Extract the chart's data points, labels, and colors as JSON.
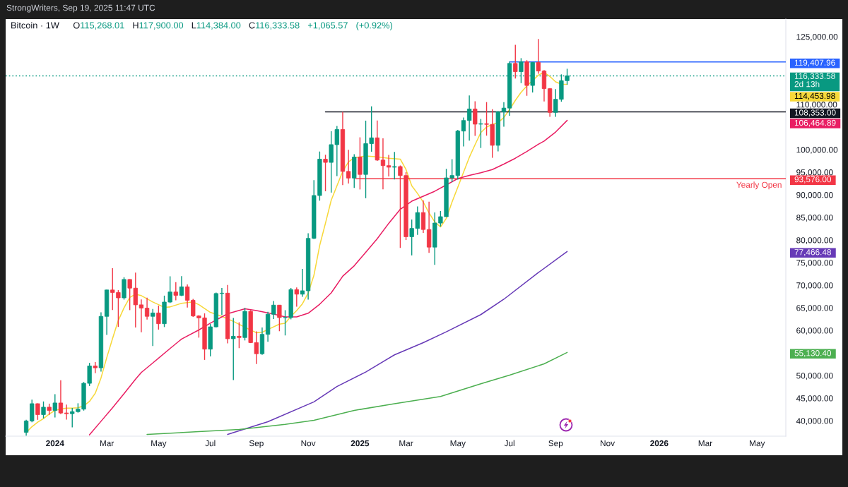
{
  "chart_data": {
    "type": "candlestick",
    "title": "Bitcoin · 1W",
    "subtitle": "O115,268.01 H117,900.00 L114,384.00 C116,333.58 +1,065.57 (+0.92%)",
    "annotations": [
      "StrongWriters, Sep 19, 2025 11:47 UTC",
      "114,453.98",
      "106,464.89",
      "77,466.48",
      "55,130.40"
    ],
    "x": [
      "2023-11-27",
      "2023-12-04",
      "2023-12-11",
      "2023-12-18",
      "2023-12-25",
      "2024-01-01",
      "2024-01-08",
      "2024-01-15",
      "2024-01-22",
      "2024-01-29",
      "2024-02-05",
      "2024-02-12",
      "2024-02-19",
      "2024-02-26",
      "2024-03-04",
      "2024-03-11",
      "2024-03-18",
      "2024-03-25",
      "2024-04-01",
      "2024-04-08",
      "2024-04-15",
      "2024-04-22",
      "2024-04-29",
      "2024-05-06",
      "2024-05-13",
      "2024-05-20",
      "2024-05-27",
      "2024-06-03",
      "2024-06-10",
      "2024-06-17",
      "2024-06-24",
      "2024-07-01",
      "2024-07-08",
      "2024-07-15",
      "2024-07-22",
      "2024-07-29",
      "2024-08-05",
      "2024-08-12",
      "2024-08-19",
      "2024-08-26",
      "2024-09-02",
      "2024-09-09",
      "2024-09-16",
      "2024-09-23",
      "2024-09-30",
      "2024-10-07",
      "2024-10-14",
      "2024-10-21",
      "2024-10-28",
      "2024-11-04",
      "2024-11-11",
      "2024-11-18",
      "2024-11-25",
      "2024-12-02",
      "2024-12-09",
      "2024-12-16",
      "2024-12-23",
      "2024-12-30",
      "2025-01-06",
      "2025-01-13",
      "2025-01-20",
      "2025-01-27",
      "2025-02-03",
      "2025-02-10",
      "2025-02-17",
      "2025-02-24",
      "2025-03-03",
      "2025-03-10",
      "2025-03-17",
      "2025-03-24",
      "2025-03-31",
      "2025-04-07",
      "2025-04-14",
      "2025-04-21",
      "2025-04-28",
      "2025-05-05",
      "2025-05-12",
      "2025-05-19",
      "2025-05-26",
      "2025-06-02",
      "2025-06-09",
      "2025-06-16",
      "2025-06-23",
      "2025-06-30",
      "2025-07-07",
      "2025-07-14",
      "2025-07-21",
      "2025-07-28",
      "2025-08-04",
      "2025-08-11",
      "2025-08-18",
      "2025-08-25",
      "2025-09-01",
      "2025-09-08",
      "2025-09-15"
    ],
    "ohlc": [
      [
        37450,
        40250,
        36700,
        39972
      ],
      [
        39972,
        44700,
        39700,
        43790
      ],
      [
        43790,
        43850,
        40222,
        41375
      ],
      [
        41375,
        44283,
        40555,
        43016
      ],
      [
        43016,
        43800,
        41300,
        42283
      ],
      [
        42283,
        45879,
        40750,
        43950
      ],
      [
        43950,
        48969,
        41500,
        41732
      ],
      [
        41732,
        43578,
        40280,
        41580
      ],
      [
        41580,
        42842,
        38555,
        42031
      ],
      [
        42031,
        43882,
        41800,
        42582
      ],
      [
        42582,
        48592,
        42258,
        48299
      ],
      [
        48299,
        52816,
        47710,
        52137
      ],
      [
        52137,
        52985,
        50521,
        51733
      ],
      [
        51733,
        64000,
        50901,
        63113
      ],
      [
        63113,
        69000,
        59005,
        68955
      ],
      [
        68955,
        73777,
        64533,
        68393
      ],
      [
        68393,
        68920,
        60775,
        67211
      ],
      [
        67211,
        71769,
        66817,
        71280
      ],
      [
        71280,
        71342,
        64493,
        69361
      ],
      [
        69361,
        72797,
        60660,
        65661
      ],
      [
        65661,
        66867,
        59600,
        64941
      ],
      [
        64941,
        67233,
        62391,
        63118
      ],
      [
        63118,
        64734,
        56552,
        63866
      ],
      [
        63866,
        65494,
        60187,
        61484
      ],
      [
        61484,
        67700,
        60749,
        66274
      ],
      [
        66274,
        71979,
        66060,
        68507
      ],
      [
        68507,
        70687,
        66670,
        67766
      ],
      [
        67766,
        71997,
        67612,
        69648
      ],
      [
        69648,
        70195,
        65078,
        66676
      ],
      [
        66676,
        66986,
        63000,
        63210
      ],
      [
        63210,
        63369,
        58402,
        62772
      ],
      [
        62772,
        63777,
        53485,
        55857
      ],
      [
        55857,
        61420,
        54260,
        60797
      ],
      [
        60797,
        68366,
        60632,
        68165
      ],
      [
        68165,
        69400,
        63441,
        68249
      ],
      [
        68249,
        70079,
        57122,
        58161
      ],
      [
        58161,
        62745,
        49000,
        58712
      ],
      [
        58712,
        61800,
        56078,
        58427
      ],
      [
        58427,
        65000,
        57787,
        64220
      ],
      [
        64220,
        64481,
        57200,
        57301
      ],
      [
        57301,
        59809,
        52550,
        54841
      ],
      [
        54841,
        60670,
        54583,
        59132
      ],
      [
        59132,
        64133,
        57493,
        63578
      ],
      [
        63578,
        66500,
        62538,
        65602
      ],
      [
        65602,
        65618,
        59828,
        62845
      ],
      [
        62845,
        64478,
        58895,
        62851
      ],
      [
        62851,
        69400,
        62457,
        69031
      ],
      [
        69031,
        69519,
        65260,
        68021
      ],
      [
        68021,
        73620,
        67456,
        68775
      ],
      [
        68775,
        81500,
        66835,
        80370
      ],
      [
        80370,
        93265,
        80216,
        89855
      ],
      [
        89855,
        99588,
        88711,
        97900
      ],
      [
        97900,
        98871,
        90791,
        97185
      ],
      [
        97185,
        104088,
        90500,
        101109
      ],
      [
        101109,
        105250,
        94150,
        104463
      ],
      [
        104463,
        108353,
        92175,
        95186
      ],
      [
        95186,
        99963,
        92500,
        93716
      ],
      [
        93716,
        99000,
        91530,
        98364
      ],
      [
        98364,
        102724,
        91203,
        94516
      ],
      [
        94516,
        106422,
        89256,
        101335
      ],
      [
        101335,
        109588,
        99550,
        102620
      ],
      [
        102620,
        106457,
        97500,
        97700
      ],
      [
        97700,
        102500,
        91231,
        96462
      ],
      [
        96462,
        98826,
        94091,
        96118
      ],
      [
        96118,
        99500,
        93400,
        96258
      ],
      [
        96258,
        96500,
        78258,
        94270
      ],
      [
        94270,
        95000,
        80000,
        80734
      ],
      [
        80734,
        84539,
        76606,
        82575
      ],
      [
        82575,
        87453,
        81134,
        86082
      ],
      [
        86082,
        88765,
        81565,
        82334
      ],
      [
        82334,
        88500,
        77150,
        78430
      ],
      [
        78430,
        86100,
        74508,
        83760
      ],
      [
        83760,
        86429,
        83000,
        85170
      ],
      [
        85170,
        95758,
        85144,
        93750
      ],
      [
        93750,
        97895,
        92800,
        94280
      ],
      [
        94280,
        104361,
        93377,
        104118
      ],
      [
        104118,
        107108,
        100718,
        106454
      ],
      [
        106454,
        111980,
        102000,
        109004
      ],
      [
        109004,
        110718,
        103068,
        105642
      ],
      [
        105642,
        106794,
        100372,
        105734
      ],
      [
        105734,
        110530,
        103100,
        105595
      ],
      [
        105595,
        108952,
        98200,
        100963
      ],
      [
        100963,
        108528,
        99604,
        108385
      ],
      [
        108385,
        110529,
        105100,
        109203
      ],
      [
        109203,
        119488,
        107500,
        119086
      ],
      [
        119086,
        123218,
        115736,
        117265
      ],
      [
        117265,
        120247,
        114723,
        119448
      ],
      [
        119448,
        119800,
        111920,
        114208
      ],
      [
        114208,
        119400,
        112650,
        119294
      ],
      [
        119294,
        124474,
        116803,
        117405
      ],
      [
        117405,
        117630,
        110680,
        113497
      ],
      [
        113497,
        113650,
        107255,
        108246
      ],
      [
        108246,
        113384,
        107270,
        111144
      ],
      [
        111144,
        116665,
        110620,
        115268.01
      ],
      [
        115268.01,
        117900,
        114384,
        116333.58
      ]
    ],
    "colors": [
      "#089981",
      "#089981",
      "#f23645",
      "#089981",
      "#f23645",
      "#089981",
      "#f23645",
      "#f23645",
      "#089981",
      "#089981",
      "#089981",
      "#089981",
      "#f23645",
      "#089981",
      "#089981",
      "#f23645",
      "#f23645",
      "#089981",
      "#f23645",
      "#f23645",
      "#f23645",
      "#f23645",
      "#089981",
      "#f23645",
      "#089981",
      "#089981",
      "#f23645",
      "#089981",
      "#f23645",
      "#f23645",
      "#f23645",
      "#f23645",
      "#089981",
      "#089981",
      "#089981",
      "#f23645",
      "#089981",
      "#f23645",
      "#089981",
      "#f23645",
      "#f23645",
      "#089981",
      "#089981",
      "#089981",
      "#f23645",
      "#089981",
      "#089981",
      "#f23645",
      "#089981",
      "#089981",
      "#089981",
      "#089981",
      "#f23645",
      "#089981",
      "#089981",
      "#f23645",
      "#f23645",
      "#089981",
      "#f23645",
      "#089981",
      "#089981",
      "#f23645",
      "#f23645",
      "#f23645",
      "#089981",
      "#f23645",
      "#f23645",
      "#089981",
      "#089981",
      "#f23645",
      "#f23645",
      "#089981",
      "#089981",
      "#089981",
      "#089981",
      "#089981",
      "#089981",
      "#089981",
      "#f23645",
      "#089981",
      "#f23645",
      "#f23645",
      "#089981",
      "#089981",
      "#089981",
      "#f23645",
      "#089981",
      "#f23645",
      "#089981",
      "#f23645",
      "#f23645",
      "#f23645",
      "#089981",
      "#089981",
      "#089981"
    ],
    "series": [
      {
        "type": "line",
        "color": "#f7d83a",
        "x": [
          "2023-11-27",
          "2023-12-04",
          "2023-12-11",
          "2023-12-18",
          "2023-12-25",
          "2024-01-01",
          "2024-01-08",
          "2024-01-15",
          "2024-01-22",
          "2024-01-29",
          "2024-02-05",
          "2024-02-12",
          "2024-02-19",
          "2024-02-26",
          "2024-03-04",
          "2024-03-11",
          "2024-03-18",
          "2024-03-25",
          "2024-04-01",
          "2024-04-08",
          "2024-04-15",
          "2024-04-22",
          "2024-04-29",
          "2024-05-06",
          "2024-05-13",
          "2024-05-20",
          "2024-06-03",
          "2024-06-17",
          "2024-06-24",
          "2024-07-08",
          "2024-07-22",
          "2024-08-05",
          "2024-08-19",
          "2024-09-02",
          "2024-09-09",
          "2024-09-16",
          "2024-09-30",
          "2024-10-07",
          "2024-10-14",
          "2024-10-21",
          "2024-10-28",
          "2024-11-04",
          "2024-11-11",
          "2024-11-18",
          "2024-11-25",
          "2024-12-02",
          "2024-12-09",
          "2024-12-16",
          "2024-12-23",
          "2024-12-30",
          "2025-01-13",
          "2025-01-27",
          "2025-02-10",
          "2025-02-24",
          "2025-03-03",
          "2025-03-10",
          "2025-03-17",
          "2025-03-24",
          "2025-03-31",
          "2025-04-07",
          "2025-04-14",
          "2025-04-21",
          "2025-04-28",
          "2025-05-05",
          "2025-05-12",
          "2025-05-19",
          "2025-05-26",
          "2025-06-02",
          "2025-06-09",
          "2025-06-16",
          "2025-06-23",
          "2025-06-30",
          "2025-07-07",
          "2025-07-14",
          "2025-07-21",
          "2025-07-28",
          "2025-08-04",
          "2025-08-11",
          "2025-08-18",
          "2025-08-25",
          "2025-09-01",
          "2025-09-08",
          "2025-09-15"
        ],
        "values": [
          37400,
          38700,
          39700,
          40500,
          41500,
          42300,
          42600,
          42800,
          42800,
          42900,
          43300,
          44300,
          46100,
          49500,
          54000,
          58200,
          62200,
          65000,
          67300,
          68000,
          67700,
          67000,
          66300,
          65700,
          65100,
          65200,
          66000,
          66300,
          65700,
          64000,
          63100,
          62000,
          60700,
          59500,
          59600,
          60200,
          61400,
          61600,
          63100,
          64400,
          65900,
          68300,
          72200,
          78800,
          83700,
          88800,
          92000,
          95200,
          97300,
          98200,
          98600,
          98400,
          98100,
          97900,
          95600,
          92000,
          90300,
          88400,
          86000,
          84000,
          82900,
          84800,
          88400,
          91700,
          95000,
          98300,
          101100,
          103800,
          105000,
          105600,
          106000,
          107100,
          108900,
          110900,
          112700,
          114100,
          115300,
          116500,
          117100,
          116200,
          115000,
          114500,
          114453.98
        ]
      },
      {
        "type": "line",
        "color": "#e91e63",
        "x": [
          "2024-02-12",
          "2024-02-26",
          "2024-03-11",
          "2024-03-25",
          "2024-04-08",
          "2024-04-15",
          "2024-04-29",
          "2024-05-20",
          "2024-06-03",
          "2024-06-24",
          "2024-07-08",
          "2024-07-29",
          "2024-08-19",
          "2024-09-02",
          "2024-09-23",
          "2024-10-07",
          "2024-10-21",
          "2024-11-04",
          "2024-11-18",
          "2024-12-02",
          "2024-12-16",
          "2024-12-30",
          "2025-01-13",
          "2025-01-27",
          "2025-02-10",
          "2025-02-24",
          "2025-03-10",
          "2025-03-24",
          "2025-04-07",
          "2025-04-21",
          "2025-05-05",
          "2025-05-19",
          "2025-06-02",
          "2025-06-16",
          "2025-06-30",
          "2025-07-14",
          "2025-07-28",
          "2025-08-11",
          "2025-08-18",
          "2025-09-01",
          "2025-09-15"
        ],
        "values": [
          36900,
          39900,
          42900,
          46000,
          49200,
          50700,
          52800,
          56000,
          58100,
          60100,
          61600,
          63700,
          64800,
          64400,
          63600,
          63000,
          63000,
          63800,
          65800,
          68300,
          72000,
          74300,
          77300,
          80300,
          83700,
          86800,
          88600,
          89700,
          90800,
          92200,
          93600,
          94300,
          94900,
          95600,
          96800,
          98100,
          99600,
          101200,
          101900,
          103900,
          106464.89
        ]
      },
      {
        "type": "line",
        "color": "#673ab7",
        "x": [
          "2024-07-29",
          "2024-09-16",
          "2024-11-11",
          "2024-12-09",
          "2025-01-13",
          "2025-02-17",
          "2025-03-24",
          "2025-04-21",
          "2025-06-02",
          "2025-06-30",
          "2025-08-11",
          "2025-09-15"
        ],
        "values": [
          37000,
          39800,
          44200,
          47600,
          50800,
          54600,
          57300,
          59700,
          63500,
          66900,
          72800,
          77466.48
        ]
      },
      {
        "type": "line",
        "color": "#4caf50",
        "x": [
          "2024-04-22",
          "2024-06-24",
          "2024-08-12",
          "2024-10-07",
          "2024-11-11",
          "2024-12-30",
          "2025-02-17",
          "2025-04-14",
          "2025-06-02",
          "2025-07-07",
          "2025-08-18",
          "2025-09-15"
        ],
        "values": [
          37000,
          37600,
          38100,
          39200,
          40100,
          42300,
          43800,
          45400,
          48200,
          50100,
          52600,
          55130.4
        ]
      },
      {
        "type": "line",
        "color": "#2962ff",
        "x": [
          "2025-07-07",
          "2026-06-08"
        ],
        "values": [
          119407.96,
          119407.96
        ],
        "value_labels": [
          null,
          "119,407.96"
        ]
      },
      {
        "type": "line",
        "color": "#131722",
        "x": [
          "2024-11-25",
          "2026-06-08"
        ],
        "values": [
          108353,
          108353
        ],
        "value_labels": [
          null,
          "108,353.00"
        ]
      },
      {
        "type": "line",
        "name": "Yearly Open",
        "color": "#f23645",
        "x": [
          "2025-01-01",
          "2026-06-08"
        ],
        "values": [
          93576,
          93576
        ],
        "value_labels": [
          null,
          "93,576.00"
        ]
      }
    ],
    "ref_lines": [
      {
        "axis": "y",
        "value": 116333.58,
        "label": "116,333.58\n2d 13h",
        "color": "#089981",
        "line_style": "dotted"
      }
    ],
    "xlim": [
      "2023-11-02",
      "2026-06-08"
    ],
    "ylim": [
      36600,
      128900
    ],
    "xticks": [
      {
        "value": "2024-01-01",
        "label": "2024"
      },
      {
        "value": "2024-03-04",
        "label": "Mar"
      },
      {
        "value": "2024-05-06",
        "label": "May"
      },
      {
        "value": "2024-07-08",
        "label": "Jul"
      },
      {
        "value": "2024-09-02",
        "label": "Sep"
      },
      {
        "value": "2024-11-04",
        "label": "Nov"
      },
      {
        "value": "2025-01-06",
        "label": "2025"
      },
      {
        "value": "2025-03-03",
        "label": "Mar"
      },
      {
        "value": "2025-05-05",
        "label": "May"
      },
      {
        "value": "2025-07-07",
        "label": "Jul"
      },
      {
        "value": "2025-09-01",
        "label": "Sep"
      },
      {
        "value": "2025-11-03",
        "label": "Nov"
      },
      {
        "value": "2026-01-05",
        "label": "2026"
      },
      {
        "value": "2026-03-02",
        "label": "Mar"
      },
      {
        "value": "2026-05-04",
        "label": "May"
      }
    ],
    "yticks": [
      {
        "value": 40000,
        "label": "40,000.00"
      },
      {
        "value": 45000,
        "label": "45,000.00"
      },
      {
        "value": 50000,
        "label": "50,000.00"
      },
      {
        "value": 60000,
        "label": "60,000.00"
      },
      {
        "value": 65000,
        "label": "65,000.00"
      },
      {
        "value": 70000,
        "label": "70,000.00"
      },
      {
        "value": 75000,
        "label": "75,000.00"
      },
      {
        "value": 80000,
        "label": "80,000.00"
      },
      {
        "value": 85000,
        "label": "85,000.00"
      },
      {
        "value": 90000,
        "label": "90,000.00"
      },
      {
        "value": 95000,
        "label": "95,000.00"
      },
      {
        "value": 100000,
        "label": "100,000.00"
      },
      {
        "value": 110000,
        "label": "110,000.00"
      },
      {
        "value": 125000,
        "label": "125,000.00"
      }
    ]
  }
}
